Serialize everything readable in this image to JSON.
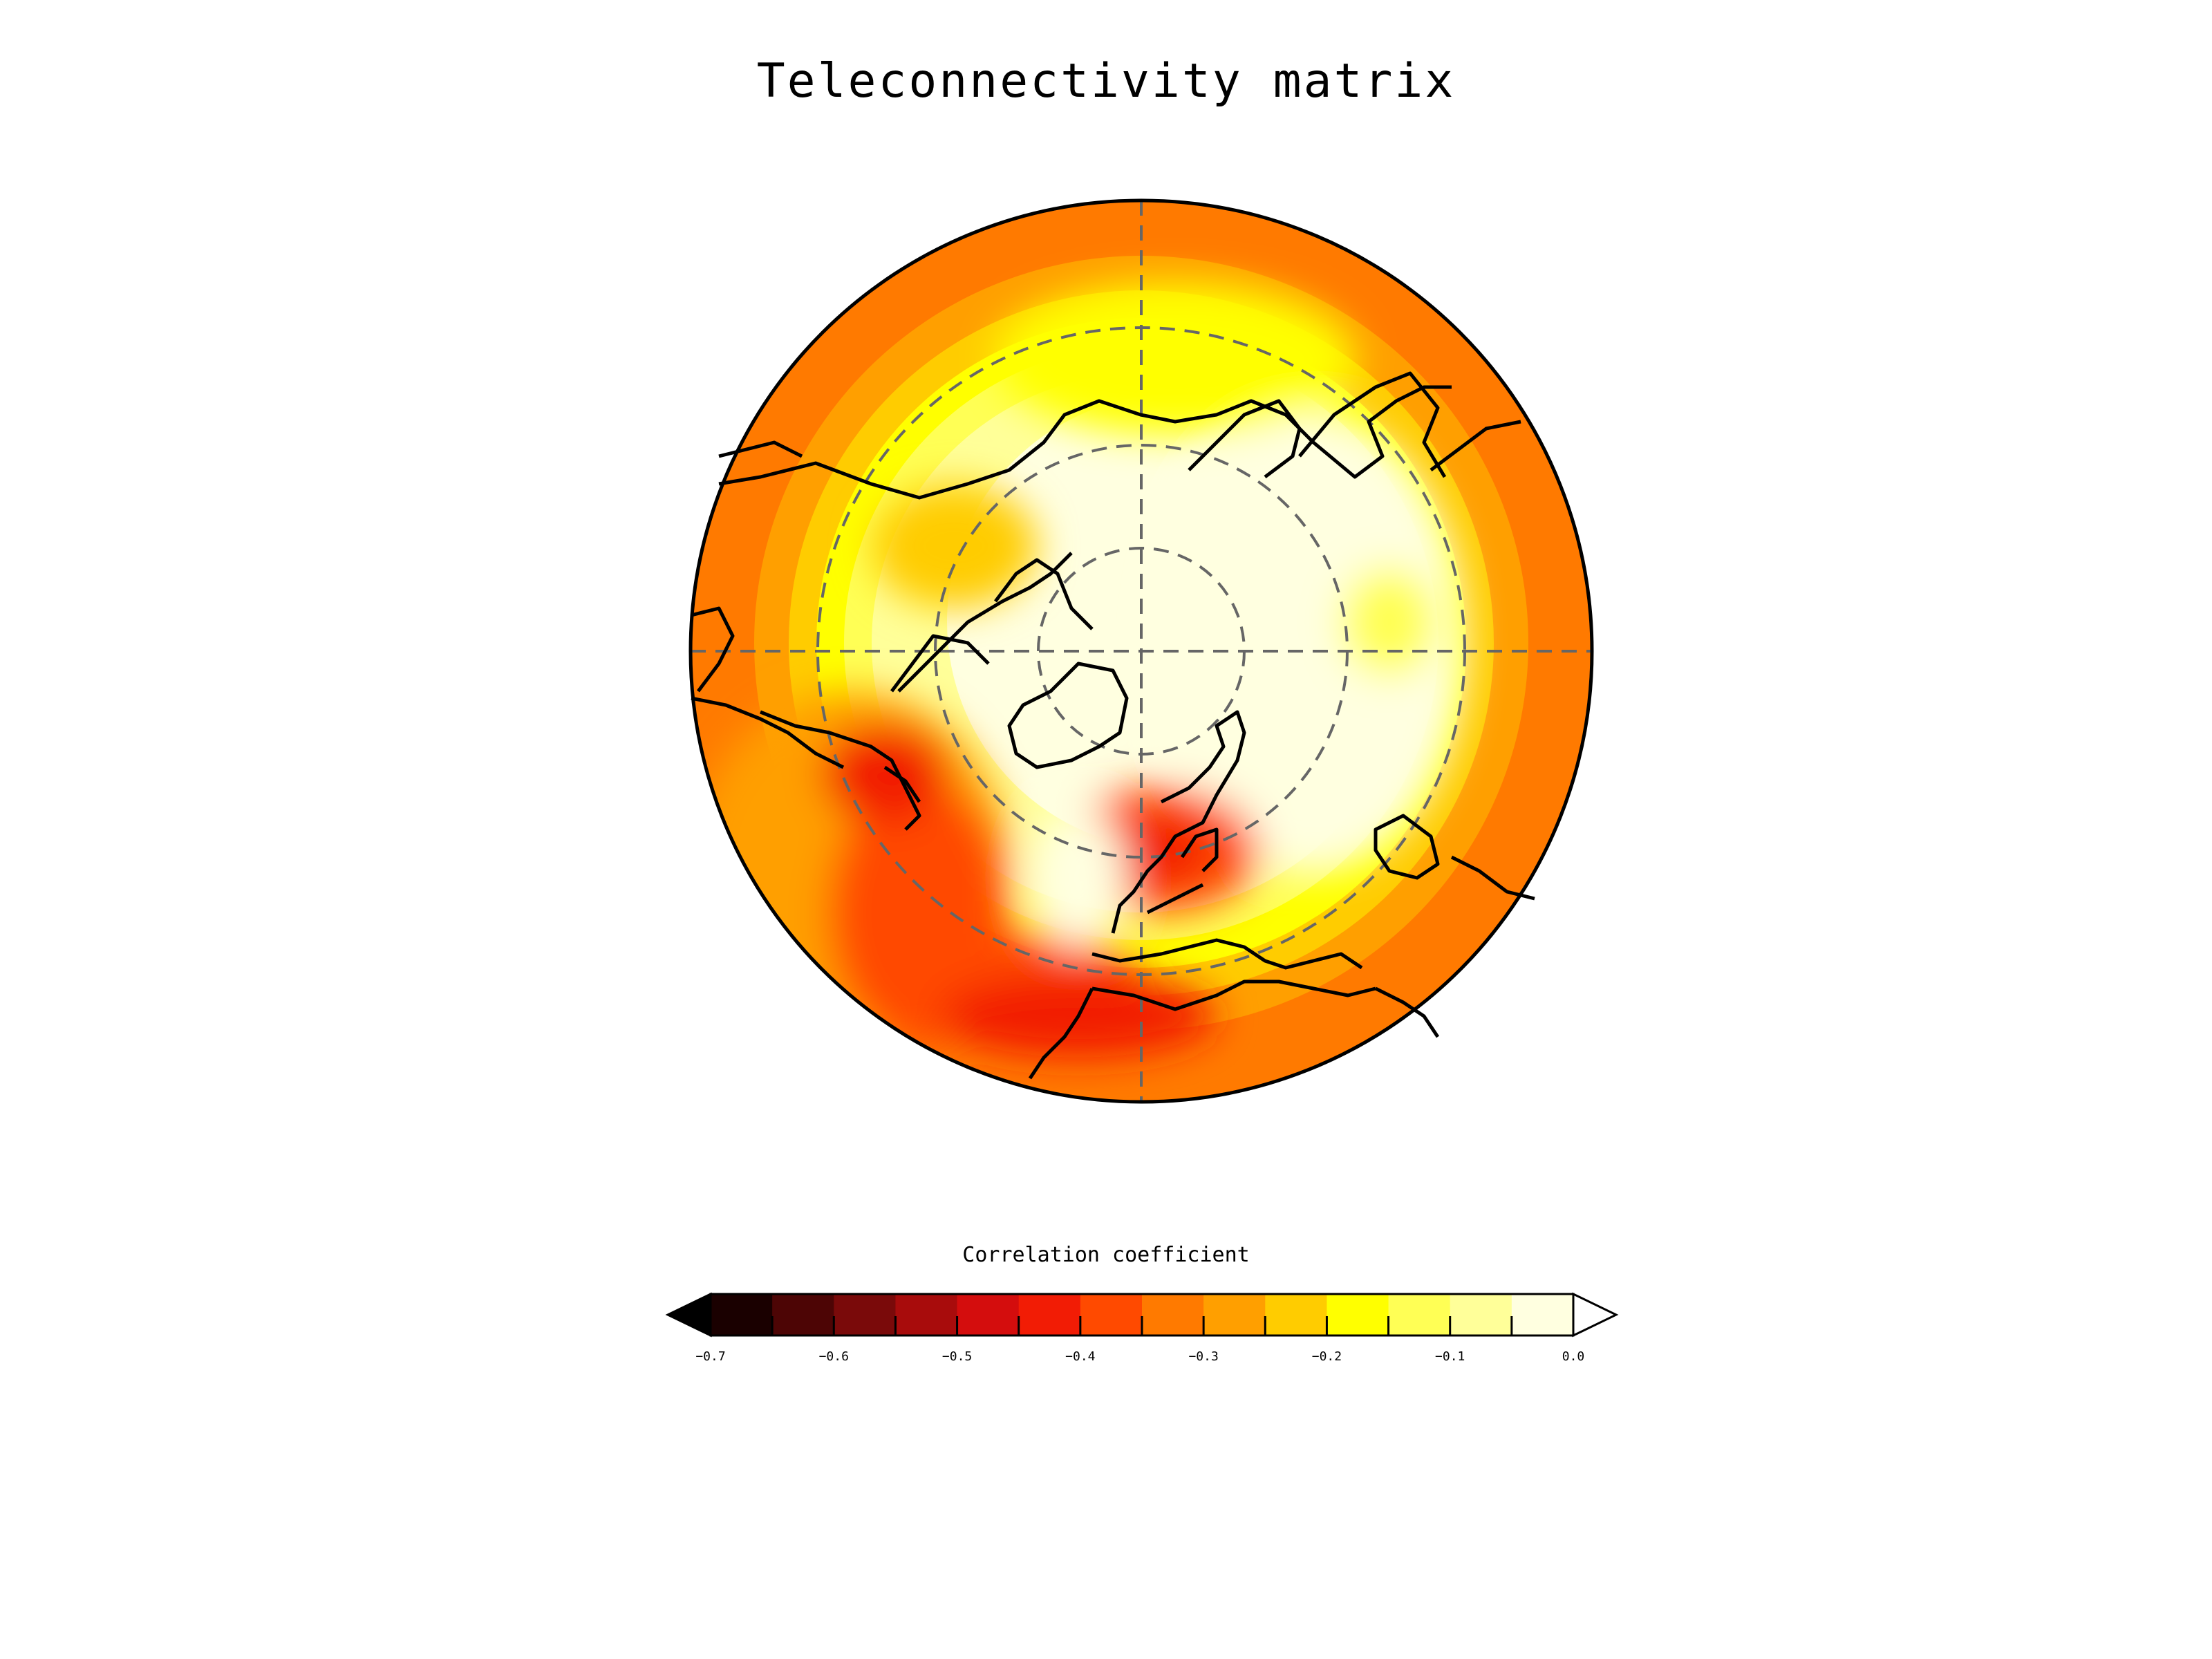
{
  "title": "Teleconnectivity matrix",
  "colorbar": {
    "label": "Correlation coefficient",
    "ticks": [
      "−0.7",
      "−0.6",
      "−0.5",
      "−0.4",
      "−0.3",
      "−0.2",
      "−0.1",
      "0.0"
    ],
    "colors": [
      "#1a0000",
      "#4d0505",
      "#7a0a0a",
      "#a80c0c",
      "#d40d0d",
      "#f21c05",
      "#ff4a00",
      "#ff7a00",
      "#ff9f00",
      "#ffcc00",
      "#ffff00",
      "#ffff55",
      "#ffff99",
      "#ffffe0"
    ],
    "extend_low_color": "#000000",
    "extend_high_color": "#ffffff"
  },
  "map": {
    "projection": "north-polar-stereographic",
    "field": "correlation coefficient",
    "ocean_edge_color": "#ff7a00",
    "graticule": "dashed grey",
    "coastlines": "black"
  }
}
